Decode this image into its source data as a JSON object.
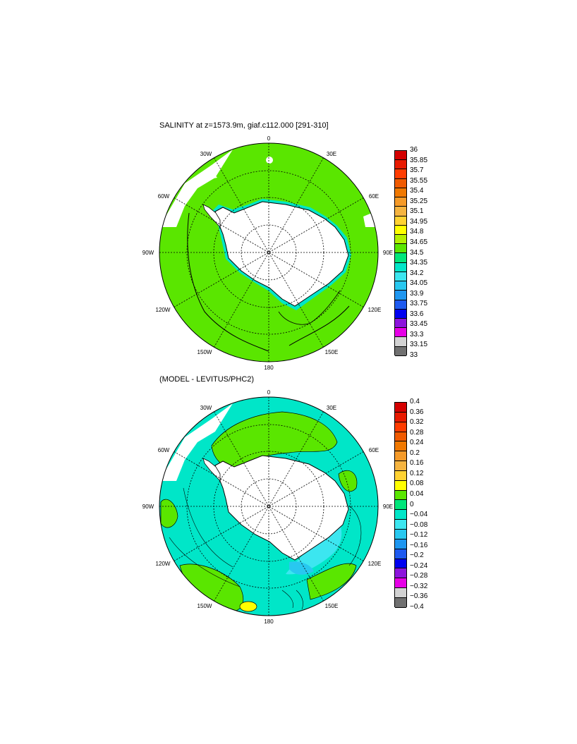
{
  "panels": [
    {
      "title": "SALINITY at z=1573.9m, giaf.c112.000 [291-310]",
      "map_labels": {
        "lon_0": "0",
        "lon_30e": "30E",
        "lon_60e": "60E",
        "lon_90e": "90E",
        "lon_120e": "120E",
        "lon_150e": "150E",
        "lon_180": "180",
        "lon_150w": "150W",
        "lon_120w": "120W",
        "lon_90w": "90W",
        "lon_60w": "60W",
        "lon_30w": "30W"
      },
      "colorbar": {
        "labels": [
          "36",
          "35.85",
          "35.7",
          "35.55",
          "35.4",
          "35.25",
          "35.1",
          "34.95",
          "34.8",
          "34.65",
          "34.5",
          "34.35",
          "34.2",
          "34.05",
          "33.9",
          "33.75",
          "33.6",
          "33.45",
          "33.3",
          "33.15",
          "33"
        ],
        "colors": [
          "#d40000",
          "#e81a00",
          "#ff3c00",
          "#f05a00",
          "#f07800",
          "#f59a28",
          "#f5b440",
          "#ffd232",
          "#ffff00",
          "#b4f000",
          "#5ae600",
          "#00e67a",
          "#00e6c8",
          "#3ce6f0",
          "#28c8f0",
          "#1e96f0",
          "#1e5af0",
          "#0000f0",
          "#8c14dc",
          "#e600e6",
          "#d2d2d2",
          "#707070"
        ]
      },
      "field": {
        "ocean_color": "#5ae600",
        "land_color": "#ffffff",
        "fringe_color": "#00e6c8"
      }
    },
    {
      "title": "(MODEL - LEVITUS/PHC2)",
      "map_labels": {
        "lon_0": "0",
        "lon_30e": "30E",
        "lon_60e": "60E",
        "lon_90e": "90E",
        "lon_120e": "120E",
        "lon_150e": "150E",
        "lon_180": "180",
        "lon_150w": "150W",
        "lon_120w": "120W",
        "lon_90w": "90W",
        "lon_60w": "60W",
        "lon_30w": "30W"
      },
      "colorbar": {
        "labels": [
          "0.4",
          "0.36",
          "0.32",
          "0.28",
          "0.24",
          "0.2",
          "0.16",
          "0.12",
          "0.08",
          "0.04",
          "0",
          "−0.04",
          "−0.08",
          "−0.12",
          "−0.16",
          "−0.2",
          "−0.24",
          "−0.28",
          "−0.32",
          "−0.36",
          "−0.4"
        ],
        "colors": [
          "#d40000",
          "#e81a00",
          "#ff3c00",
          "#f05a00",
          "#f07800",
          "#f59a28",
          "#f5b440",
          "#ffd232",
          "#ffff00",
          "#5ae600",
          "#00e67a",
          "#00e6c8",
          "#3ce6f0",
          "#28c8f0",
          "#1e96f0",
          "#1e5af0",
          "#0000f0",
          "#8c14dc",
          "#e600e6",
          "#d2d2d2",
          "#707070"
        ]
      },
      "field": {
        "ocean_color": "#00e6c8",
        "land_color": "#ffffff",
        "positive_color": "#5ae600",
        "strong_positive_color": "#ffff00",
        "deep_negative_color": "#28c8f0"
      }
    }
  ]
}
